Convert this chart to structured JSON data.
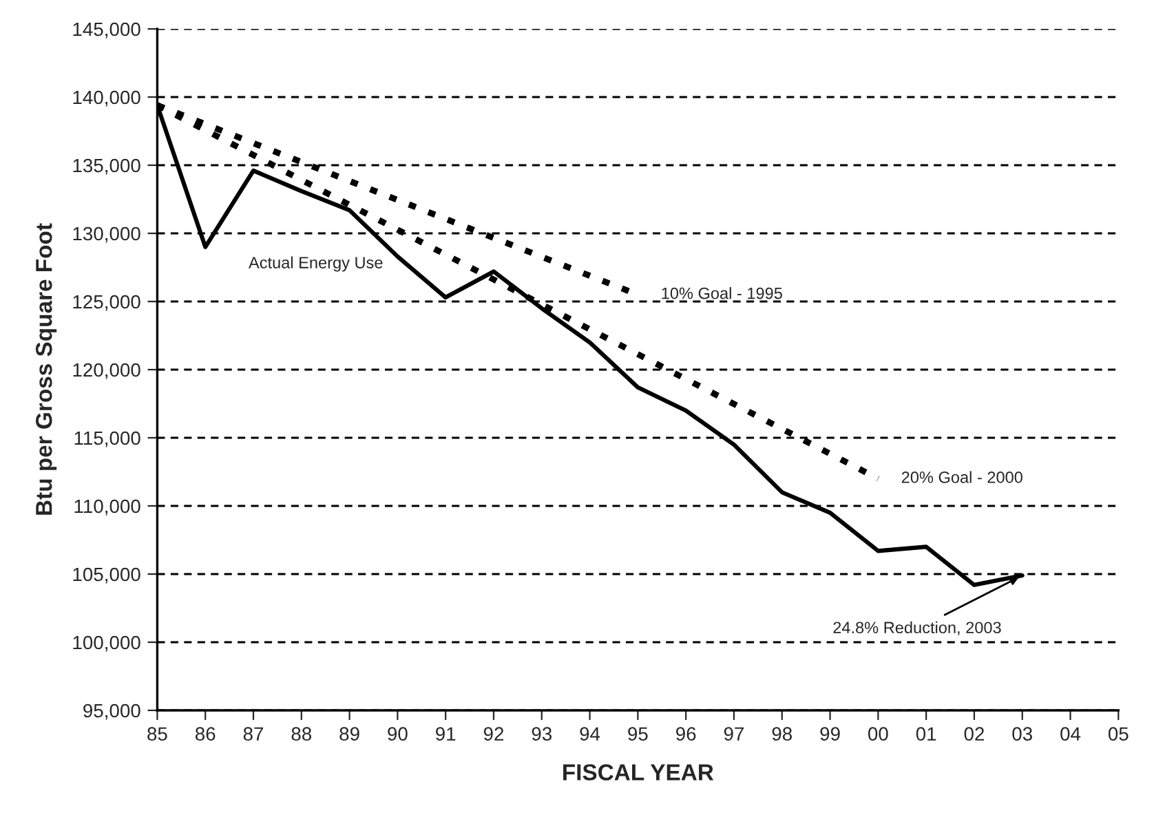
{
  "chart_data": {
    "type": "line",
    "xlabel": "FISCAL YEAR",
    "ylabel": "Btu per Gross Square Foot",
    "x": [
      1985,
      1986,
      1987,
      1988,
      1989,
      1990,
      1991,
      1992,
      1993,
      1994,
      1995,
      1996,
      1997,
      1998,
      1999,
      2000,
      2001,
      2002,
      2003
    ],
    "series": [
      {
        "color": "#000000",
        "line_style": "solid",
        "values": [
          139400,
          129000,
          134600,
          133100,
          131700,
          128300,
          125300,
          127200,
          124500,
          122000,
          118700,
          117000,
          114500,
          111000,
          109500,
          106700,
          107000,
          104200,
          104900
        ]
      },
      {
        "color": "#000000",
        "line_style": "dotted",
        "x": [
          1985,
          1995
        ],
        "values": [
          139400,
          125500
        ]
      },
      {
        "color": "#000000",
        "line_style": "dotted",
        "x": [
          1985,
          2000
        ],
        "values": [
          139400,
          112000
        ]
      }
    ],
    "annotations": [
      "Actual Energy Use",
      {
        "text": "10% Goal - 1995",
        "x": 1995,
        "y": 125500
      },
      {
        "text": "20% Goal - 2000",
        "x": 2000,
        "y": 112000
      },
      {
        "text": "24.8% Reduction, 2003",
        "x": 2003,
        "y": 104900
      }
    ],
    "xlim": [
      1985,
      2005
    ],
    "xticks": [
      {
        "value": 1985,
        "label": "85"
      },
      {
        "value": 1986,
        "label": "86"
      },
      {
        "value": 1987,
        "label": "87"
      },
      {
        "value": 1988,
        "label": "88"
      },
      {
        "value": 1989,
        "label": "89"
      },
      {
        "value": 1990,
        "label": "90"
      },
      {
        "value": 1991,
        "label": "91"
      },
      {
        "value": 1992,
        "label": "92"
      },
      {
        "value": 1993,
        "label": "93"
      },
      {
        "value": 1994,
        "label": "94"
      },
      {
        "value": 1995,
        "label": "95"
      },
      {
        "value": 1996,
        "label": "96"
      },
      {
        "value": 1997,
        "label": "97"
      },
      {
        "value": 1998,
        "label": "98"
      },
      {
        "value": 1999,
        "label": "99"
      },
      {
        "value": 2000,
        "label": "00"
      },
      {
        "value": 2001,
        "label": "01"
      },
      {
        "value": 2002,
        "label": "02"
      },
      {
        "value": 2003,
        "label": "03"
      },
      {
        "value": 2004,
        "label": "04"
      },
      {
        "value": 2005,
        "label": "05"
      }
    ],
    "ylim": [
      95000,
      145000
    ],
    "yticks": [
      {
        "value": 95000,
        "label": "95,000"
      },
      {
        "value": 100000,
        "label": "100,000"
      },
      {
        "value": 105000,
        "label": "105,000"
      },
      {
        "value": 110000,
        "label": "110,000"
      },
      {
        "value": 115000,
        "label": "115,000"
      },
      {
        "value": 120000,
        "label": "120,000"
      },
      {
        "value": 125000,
        "label": "125,000"
      },
      {
        "value": 130000,
        "label": "130,000"
      },
      {
        "value": 135000,
        "label": "135,000"
      },
      {
        "value": 140000,
        "label": "140,000"
      },
      {
        "value": 145000,
        "label": "145,000"
      }
    ],
    "grid": "y",
    "legend": false,
    "marker": "none"
  }
}
